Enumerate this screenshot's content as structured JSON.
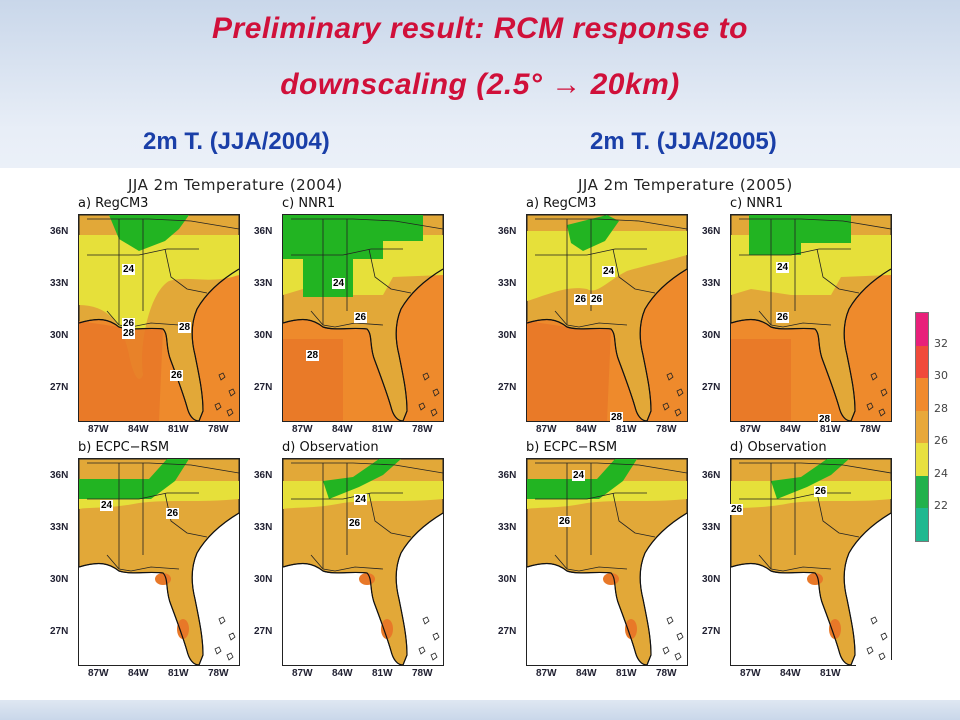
{
  "slide": {
    "title_line1": "Preliminary result: RCM response to",
    "title_line2": "downscaling (2.5° → 20km)",
    "subtitle_left": "2m T. (JJA/2004)",
    "subtitle_right": "2m T. (JJA/2005)"
  },
  "figures": [
    {
      "title": "JJA 2m Temperature (2004)",
      "panels": [
        {
          "label": "a)  RegCM3",
          "contours": [
            "24",
            "26",
            "28",
            "28",
            "26"
          ]
        },
        {
          "label": "c)  NNR1",
          "contours": [
            "24",
            "26",
            "28"
          ]
        },
        {
          "label": "b)  ECPC−RSM",
          "contours": [
            "24",
            "26"
          ]
        },
        {
          "label": "d)  Observation",
          "contours": [
            "24",
            "26"
          ]
        }
      ]
    },
    {
      "title": "JJA 2m Temperature (2005)",
      "panels": [
        {
          "label": "a)  RegCM3",
          "contours": [
            "24",
            "26",
            "26",
            "28"
          ]
        },
        {
          "label": "c)  NNR1",
          "contours": [
            "24",
            "26",
            "28"
          ]
        },
        {
          "label": "b)  ECPC−RSM",
          "contours": [
            "24",
            "26"
          ]
        },
        {
          "label": "d)  Observation",
          "contours": [
            "26",
            "26"
          ]
        }
      ]
    }
  ],
  "axes": {
    "lat_ticks": [
      "36N",
      "33N",
      "30N",
      "27N"
    ],
    "lon_ticks": [
      "87W",
      "84W",
      "81W",
      "78W"
    ]
  },
  "colorbar": {
    "labels": [
      "32",
      "30",
      "28",
      "26",
      "24",
      "22"
    ],
    "colors": [
      "#e8207a",
      "#f04a3a",
      "#f08a2e",
      "#e8a83a",
      "#e8e040",
      "#22b14c",
      "#20b890"
    ]
  },
  "palette": {
    "green": "#22b422",
    "yellow": "#e6e03a",
    "lightorange": "#e2a838",
    "orange": "#ee8a2c",
    "darkorange": "#e87828",
    "ocean": "#ffffff"
  }
}
